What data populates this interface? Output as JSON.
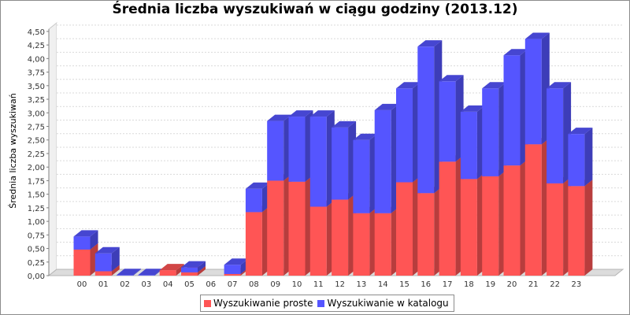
{
  "chart_data": {
    "type": "bar",
    "stacked": true,
    "three_d": true,
    "title": "Średnia liczba wyszukiwań w ciągu godziny (2013.12)",
    "xlabel": "",
    "ylabel": "Średnia liczba wyszukiwań",
    "ylim": [
      0,
      4.6
    ],
    "yticks": [
      "0,00",
      "0,25",
      "0,50",
      "0,75",
      "1,00",
      "1,25",
      "1,50",
      "1,75",
      "2,00",
      "2,25",
      "2,50",
      "2,75",
      "3,00",
      "3,25",
      "3,50",
      "3,75",
      "4,00",
      "4,25",
      "4,50"
    ],
    "grid": true,
    "legend": "bottom",
    "categories": [
      "00",
      "01",
      "02",
      "03",
      "04",
      "05",
      "06",
      "07",
      "08",
      "09",
      "10",
      "11",
      "12",
      "13",
      "14",
      "15",
      "16",
      "17",
      "18",
      "19",
      "20",
      "21",
      "22",
      "23"
    ],
    "series": [
      {
        "name": "Wyszukiwanie proste",
        "color": "#ff5555",
        "values": [
          0.48,
          0.08,
          0.0,
          0.0,
          0.1,
          0.06,
          0.0,
          0.03,
          1.17,
          1.75,
          1.73,
          1.27,
          1.4,
          1.15,
          1.15,
          1.72,
          1.52,
          2.1,
          1.78,
          1.83,
          2.03,
          2.42,
          1.7,
          1.65
        ]
      },
      {
        "name": "Wyszukiwanie w katalogu",
        "color": "#5555ff",
        "values": [
          0.24,
          0.33,
          0.01,
          0.01,
          0.0,
          0.09,
          0.0,
          0.17,
          0.43,
          1.1,
          1.2,
          1.66,
          1.33,
          1.35,
          1.9,
          1.73,
          2.7,
          1.48,
          1.24,
          1.62,
          2.03,
          1.94,
          1.75,
          0.96
        ]
      }
    ]
  }
}
